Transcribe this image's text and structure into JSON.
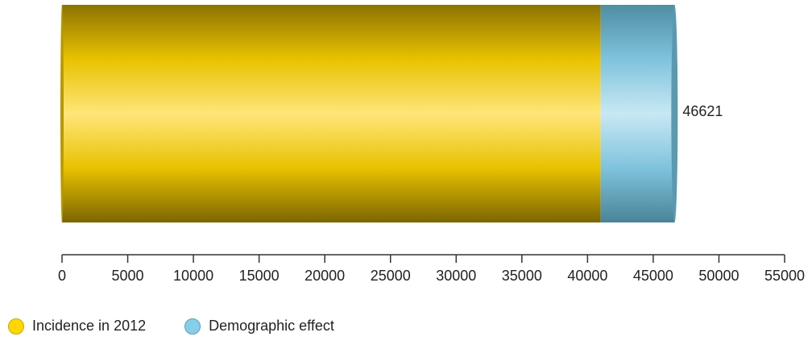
{
  "chart_data": {
    "type": "bar",
    "orientation": "horizontal",
    "stacked": true,
    "categories": [
      ""
    ],
    "series": [
      {
        "name": "Incidence in 2012",
        "values": [
          41000
        ],
        "color": "#FFD700"
      },
      {
        "name": "Demographic effect",
        "values": [
          5621
        ],
        "color": "#87CEEB"
      }
    ],
    "total_label": "46621",
    "xlim": [
      0,
      55000
    ],
    "xticks": [
      0,
      5000,
      10000,
      15000,
      20000,
      25000,
      30000,
      35000,
      40000,
      45000,
      50000,
      55000
    ],
    "legend_position": "bottom-left",
    "grid": false
  }
}
